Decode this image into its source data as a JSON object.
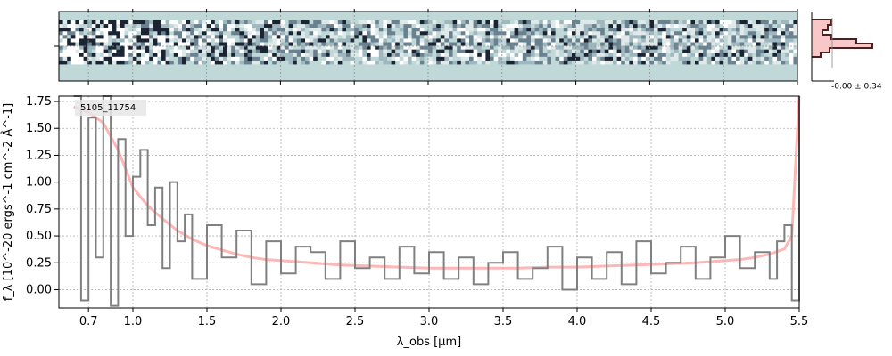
{
  "chart_data": [
    {
      "type": "heatmap",
      "panel": "2D spectrum",
      "x_range_um": [
        0.5,
        5.5
      ],
      "colors": {
        "background": "#c0d8d8",
        "dark": "#1a2433",
        "light": "#ffffff"
      },
      "grid": true
    },
    {
      "type": "histogram",
      "panel": "pixel histogram",
      "annotation": "-0.00 ± 0.34",
      "colors": {
        "fill": "#f8c8c8",
        "line": "#4a2020"
      }
    },
    {
      "type": "line",
      "panel": "1D spectrum",
      "object_label": "5105_11754",
      "xlabel": "λ_obs [µm]",
      "ylabel": "f_λ [10^-20 ergs^-1 cm^-2 Å^-1]",
      "xlim": [
        0.5,
        5.5
      ],
      "ylim": [
        -0.17,
        1.8
      ],
      "x_ticks": [
        0.7,
        1.0,
        1.5,
        2.0,
        2.5,
        3.0,
        3.5,
        4.0,
        4.5,
        5.0,
        5.5
      ],
      "x_tick_labels": [
        "0.7",
        "1.0",
        "1.5",
        "2.0",
        "2.5",
        "3.0",
        "3.5",
        "4.0",
        "4.5",
        "5.0",
        "5.5"
      ],
      "y_ticks": [
        0.0,
        0.25,
        0.5,
        0.75,
        1.0,
        1.25,
        1.5,
        1.75
      ],
      "y_tick_labels": [
        "0.00",
        "0.25",
        "0.50",
        "0.75",
        "1.00",
        "1.25",
        "1.50",
        "1.75"
      ],
      "grid": true,
      "colors": {
        "data": "#808080",
        "model": "#ff9d9d"
      },
      "series": [
        {
          "role": "model",
          "x": [
            0.6,
            0.7,
            0.8,
            0.9,
            1.0,
            1.1,
            1.2,
            1.3,
            1.4,
            1.5,
            1.6,
            1.7,
            1.8,
            1.9,
            2.0,
            2.2,
            2.4,
            2.6,
            2.8,
            3.0,
            3.2,
            3.4,
            3.6,
            3.8,
            4.0,
            4.2,
            4.4,
            4.6,
            4.8,
            5.0,
            5.1,
            5.2,
            5.3,
            5.4,
            5.45,
            5.5
          ],
          "y": [
            1.7,
            1.65,
            1.55,
            1.3,
            0.95,
            0.78,
            0.66,
            0.55,
            0.47,
            0.41,
            0.37,
            0.33,
            0.3,
            0.28,
            0.27,
            0.25,
            0.23,
            0.22,
            0.21,
            0.2,
            0.2,
            0.2,
            0.2,
            0.21,
            0.21,
            0.22,
            0.23,
            0.24,
            0.25,
            0.27,
            0.28,
            0.3,
            0.33,
            0.38,
            0.5,
            1.8
          ]
        },
        {
          "role": "data",
          "x": [
            0.6,
            0.65,
            0.7,
            0.75,
            0.8,
            0.85,
            0.9,
            0.95,
            1.0,
            1.05,
            1.1,
            1.15,
            1.2,
            1.25,
            1.3,
            1.35,
            1.4,
            1.5,
            1.6,
            1.7,
            1.8,
            1.9,
            2.0,
            2.1,
            2.2,
            2.3,
            2.4,
            2.5,
            2.6,
            2.7,
            2.8,
            2.9,
            3.0,
            3.1,
            3.2,
            3.3,
            3.4,
            3.5,
            3.6,
            3.7,
            3.8,
            3.9,
            4.0,
            4.1,
            4.2,
            4.3,
            4.4,
            4.5,
            4.6,
            4.7,
            4.8,
            4.9,
            5.0,
            5.1,
            5.2,
            5.3,
            5.35,
            5.4,
            5.45,
            5.5
          ],
          "y": [
            1.8,
            -0.1,
            1.6,
            0.3,
            1.8,
            -0.15,
            1.4,
            0.5,
            1.05,
            1.3,
            0.6,
            0.95,
            0.2,
            1.0,
            0.45,
            0.7,
            0.1,
            0.6,
            0.3,
            0.55,
            0.05,
            0.45,
            0.15,
            0.4,
            0.35,
            0.1,
            0.45,
            0.2,
            0.3,
            0.1,
            0.4,
            0.15,
            0.35,
            0.1,
            0.3,
            0.05,
            0.25,
            0.35,
            0.1,
            0.2,
            0.4,
            0.0,
            0.3,
            0.1,
            0.35,
            0.05,
            0.45,
            0.15,
            0.25,
            0.4,
            0.1,
            0.3,
            0.5,
            0.2,
            0.35,
            0.1,
            0.45,
            0.6,
            -0.1,
            1.8
          ]
        }
      ]
    }
  ]
}
